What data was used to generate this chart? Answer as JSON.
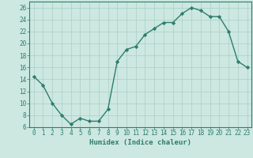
{
  "x": [
    0,
    1,
    2,
    3,
    4,
    5,
    6,
    7,
    8,
    9,
    10,
    11,
    12,
    13,
    14,
    15,
    16,
    17,
    18,
    19,
    20,
    21,
    22,
    23
  ],
  "y": [
    14.5,
    13,
    10,
    8,
    6.5,
    7.5,
    7,
    7,
    9,
    17,
    19,
    19.5,
    21.5,
    22.5,
    23.5,
    23.5,
    25,
    26,
    25.5,
    24.5,
    24.5,
    22,
    17,
    16
  ],
  "line_color": "#2e7d6e",
  "marker": "D",
  "marker_size": 2.2,
  "bg_color": "#cce8e0",
  "grid_color": "#aacfc5",
  "xlabel": "Humidex (Indice chaleur)",
  "xlim": [
    -0.5,
    23.5
  ],
  "ylim": [
    6,
    27
  ],
  "yticks": [
    6,
    8,
    10,
    12,
    14,
    16,
    18,
    20,
    22,
    24,
    26
  ],
  "xticks": [
    0,
    1,
    2,
    3,
    4,
    5,
    6,
    7,
    8,
    9,
    10,
    11,
    12,
    13,
    14,
    15,
    16,
    17,
    18,
    19,
    20,
    21,
    22,
    23
  ],
  "tick_color": "#2e7d6e",
  "label_color": "#2e7d6e",
  "xlabel_fontsize": 6.5,
  "tick_fontsize": 5.5,
  "linewidth": 1.0
}
